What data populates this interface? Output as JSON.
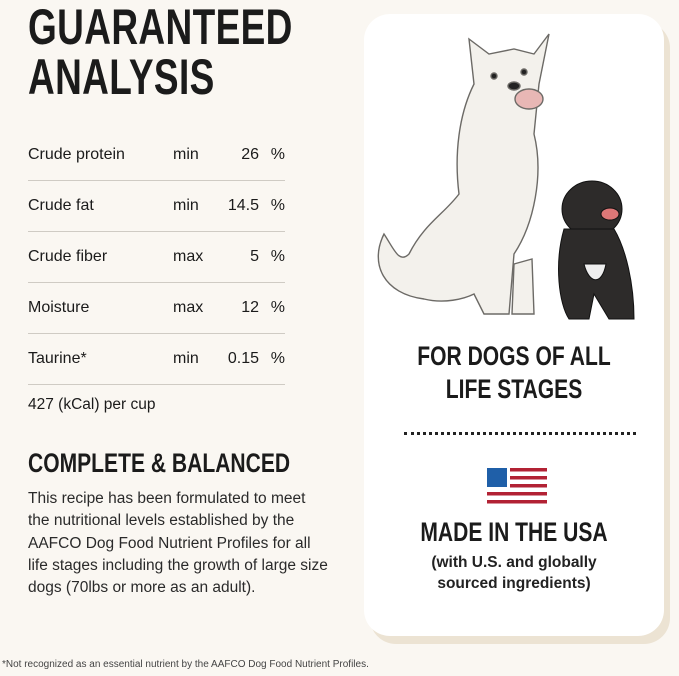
{
  "title": {
    "line1": "GUARANTEED",
    "line2": "ANALYSIS"
  },
  "analysis": [
    {
      "nutrient": "Crude protein",
      "qualifier": "min",
      "value": "26",
      "unit": "%"
    },
    {
      "nutrient": "Crude fat",
      "qualifier": "min",
      "value": "14.5",
      "unit": "%"
    },
    {
      "nutrient": "Crude fiber",
      "qualifier": "max",
      "value": "5",
      "unit": "%"
    },
    {
      "nutrient": "Moisture",
      "qualifier": "max",
      "value": "12",
      "unit": "%"
    },
    {
      "nutrient": "Taurine*",
      "qualifier": "min",
      "value": "0.15",
      "unit": "%"
    }
  ],
  "calories": "427 (kCal) per cup",
  "complete": {
    "heading": "COMPLETE & BALANCED",
    "text": "This recipe has been formulated to meet the nutritional levels established by the AAFCO Dog Food Nutrient Profiles for all life stages including the growth of large size dogs (70lbs or more as an adult)."
  },
  "card": {
    "life_line1": "FOR DOGS OF ALL",
    "life_line2": "LIFE STAGES",
    "made": "MADE IN THE USA",
    "sub_line1": "(with U.S. and globally",
    "sub_line2": "sourced ingredients)",
    "flag_icon": "us-flag-icon",
    "colors": {
      "flag_blue": "#1f5fa8",
      "flag_red": "#b22234"
    }
  },
  "footnote": "*Not recognized as an essential nutrient by the AAFCO Dog Food Nutrient Profiles."
}
